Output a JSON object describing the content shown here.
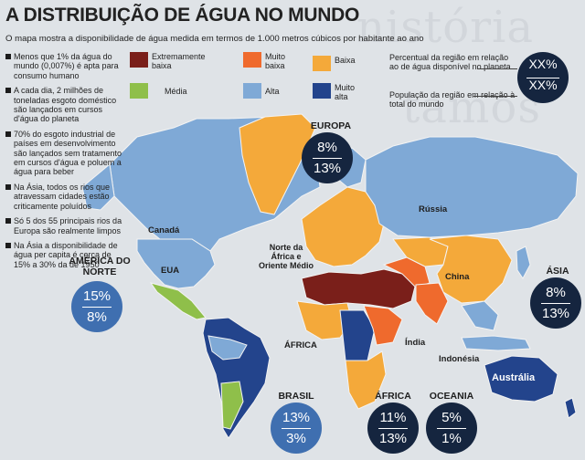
{
  "title": "A DISTRIBUIÇÃO DE ÁGUA NO MUNDO",
  "subtitle": "O mapa mostra a disponibilidade de água medida em termos de 1.000 metros cúbicos por habitante ao ano",
  "bullets": [
    "Menos que 1% da água do mundo (0,007%) é apta para consumo humano",
    "A cada dia, 2 milhões de toneladas esgoto doméstico são lançados em cursos d'água do planeta",
    "70% do esgoto industrial de países em desenvolvimento são lançados sem tratamento em cursos d'água e poluem a água para beber",
    "Na Ásia, todos os rios que atravessam cidades estão criticamente poluídos",
    "Só 5 dos 55 principais rios da Europa são realmente limpos",
    "Na Ásia a disponibilidade de água per capita é cerca de 15% a 30% da de 1950"
  ],
  "legend": {
    "extremamente_baixa": {
      "label": "Extremamente baixa",
      "color": "#7a1f1a"
    },
    "muito_baixa": {
      "label": "Muito baixa",
      "color": "#ef6a2d"
    },
    "baixa": {
      "label": "Baixa",
      "color": "#f4a93a"
    },
    "media": {
      "label": "Média",
      "color": "#8fbf4a"
    },
    "alta": {
      "label": "Alta",
      "color": "#7fa9d6"
    },
    "muito_alta": {
      "label": "Muito alta",
      "color": "#23448c"
    }
  },
  "key": {
    "percent_water": "Percentual da região em relação ao de água disponível no planeta",
    "percent_population": "População da região em relação à total do mundo",
    "top": "XX%",
    "bottom": "XX%"
  },
  "map_labels": {
    "canada": "Canadá",
    "eua": "EUA",
    "russia": "Rússia",
    "china": "China",
    "india": "Índia",
    "indonesia": "Indonésia",
    "australia": "Austrália",
    "africa": "ÁFRICA",
    "norte_africa": "Norte da África e Oriente Médio"
  },
  "regions": {
    "america_norte": {
      "label": "AMÉRICA DO NORTE",
      "water": "15%",
      "population": "8%"
    },
    "europa": {
      "label": "EUROPA",
      "water": "8%",
      "population": "13%"
    },
    "asia": {
      "label": "ÁSIA",
      "water": "8%",
      "population": "13%"
    },
    "brasil": {
      "label": "BRASIL",
      "water": "13%",
      "population": "3%"
    },
    "africa": {
      "label": "ÁFRICA",
      "water": "11%",
      "population": "13%"
    },
    "oceania": {
      "label": "OCEANIA",
      "water": "5%",
      "population": "1%"
    }
  }
}
